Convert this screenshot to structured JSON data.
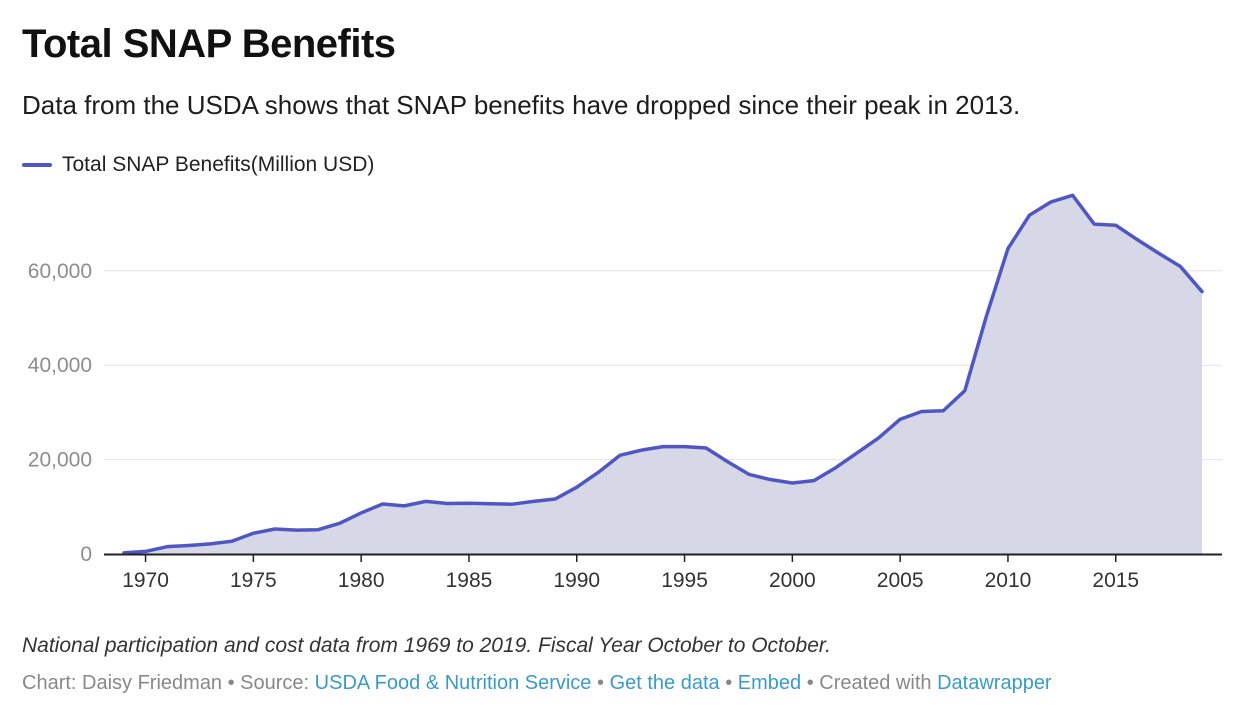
{
  "header": {
    "title": "Total SNAP Benefits",
    "subtitle": "Data from the USDA shows that SNAP benefits have dropped since their peak in 2013."
  },
  "colors": {
    "line": "#5057c2",
    "area": "#d6d8e7",
    "grid": "#e2e2e2",
    "axis": "#222222",
    "link": "#3a9bc9"
  },
  "chart_data": {
    "type": "area",
    "title": "Total SNAP Benefits",
    "xlabel": "",
    "ylabel": "",
    "xlim": [
      1969,
      2019
    ],
    "ylim": [
      0,
      75000
    ],
    "grid": "horizontal",
    "legend_position": "top-left",
    "y_ticks": [
      0,
      20000,
      40000,
      60000
    ],
    "y_tick_labels": [
      "0",
      "20,000",
      "40,000",
      "60,000"
    ],
    "x_ticks": [
      1970,
      1975,
      1980,
      1985,
      1990,
      1995,
      2000,
      2005,
      2010,
      2015
    ],
    "x_tick_labels": [
      "1970",
      "1975",
      "1980",
      "1985",
      "1990",
      "1995",
      "2000",
      "2005",
      "2010",
      "2015"
    ],
    "x": [
      1969,
      1970,
      1971,
      1972,
      1973,
      1974,
      1975,
      1976,
      1977,
      1978,
      1979,
      1980,
      1981,
      1982,
      1983,
      1984,
      1985,
      1986,
      1987,
      1988,
      1989,
      1990,
      1991,
      1992,
      1993,
      1994,
      1995,
      1996,
      1997,
      1998,
      1999,
      2000,
      2001,
      2002,
      2003,
      2004,
      2005,
      2006,
      2007,
      2008,
      2009,
      2010,
      2011,
      2012,
      2013,
      2014,
      2015,
      2016,
      2017,
      2018,
      2019
    ],
    "series": [
      {
        "name": "Total SNAP Benefits(Million USD)",
        "values": [
          250,
          550,
          1550,
          1800,
          2150,
          2700,
          4400,
          5300,
          5050,
          5150,
          6500,
          8700,
          10600,
          10200,
          11150,
          10700,
          10750,
          10650,
          10550,
          11150,
          11650,
          14150,
          17300,
          20900,
          22000,
          22750,
          22750,
          22450,
          19550,
          16850,
          15750,
          15050,
          15550,
          18250,
          21400,
          24600,
          28550,
          30200,
          30350,
          34600,
          50400,
          64700,
          71800,
          74600,
          76000,
          69900,
          69650,
          66600,
          63700,
          60900,
          55600
        ]
      }
    ]
  },
  "footer": {
    "note": "National participation and cost data from 1969 to 2019. Fiscal Year October to October.",
    "chart_prefix": "Chart: Daisy Friedman • Source: ",
    "source_link": "USDA Food & Nutrition Service",
    "sep1": " • ",
    "get_data": "Get the data",
    "sep2": " • ",
    "embed": "Embed",
    "created_prefix": " • Created with ",
    "datawrapper": "Datawrapper"
  }
}
